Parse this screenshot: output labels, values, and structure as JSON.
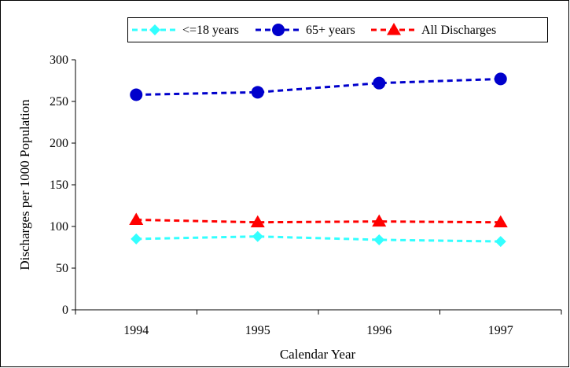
{
  "chart_data": {
    "type": "line",
    "title": "",
    "xlabel": "Calendar Year",
    "ylabel": "Discharges per 1000 Population",
    "categories": [
      "1994",
      "1995",
      "1996",
      "1997"
    ],
    "ylim": [
      0,
      300
    ],
    "yticks": [
      0,
      50,
      100,
      150,
      200,
      250,
      300
    ],
    "grid": false,
    "legend_position": "top",
    "series": [
      {
        "name": "<=18 years",
        "values": [
          85,
          88,
          84,
          82
        ],
        "color": "#33ffff",
        "marker": "diamond",
        "line_style": "dashed"
      },
      {
        "name": "65+ years",
        "values": [
          258,
          261,
          272,
          277
        ],
        "color": "#0000cc",
        "marker": "circle",
        "line_style": "dashed"
      },
      {
        "name": "All Discharges",
        "values": [
          108,
          105,
          106,
          105
        ],
        "color": "#ff0000",
        "marker": "triangle",
        "line_style": "dashed"
      }
    ]
  }
}
